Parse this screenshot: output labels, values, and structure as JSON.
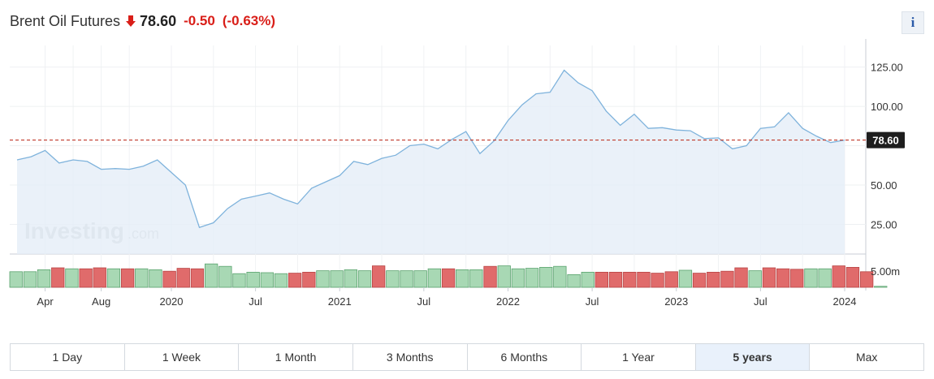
{
  "header": {
    "title": "Brent Oil Futures",
    "price": "78.60",
    "change": "-0.50",
    "change_pct": "(-0.63%)",
    "arrow_icon": "arrow-down-icon",
    "down_color": "#d91e18"
  },
  "info_button": {
    "label": "i",
    "icon": "info-icon"
  },
  "watermark": {
    "brand": "Investing",
    "suffix": ".com"
  },
  "ranges": {
    "items": [
      "1 Day",
      "1 Week",
      "1 Month",
      "3 Months",
      "6 Months",
      "1 Year",
      "5 years",
      "Max"
    ],
    "active": "5 years"
  },
  "chart_data": {
    "type": "area",
    "price_ticks": [
      25,
      50,
      100,
      125
    ],
    "price_tick_labels": [
      "25.00",
      "50.00",
      "100.00",
      "125.00"
    ],
    "current_price_label": "78.60",
    "current_price": 78.6,
    "volume_tick_label": "5.00m",
    "x_tick_labels": [
      "Apr",
      "Aug",
      "2020",
      "Jul",
      "2021",
      "Jul",
      "2022",
      "Jul",
      "2023",
      "Jul",
      "2024"
    ],
    "x_tick_dates": [
      "2019-04",
      "2019-08",
      "2020-01",
      "2020-07",
      "2021-01",
      "2021-07",
      "2022-01",
      "2022-07",
      "2023-01",
      "2023-07",
      "2024-01"
    ],
    "series": [
      {
        "dates": [
          "2019-02",
          "2019-03",
          "2019-04",
          "2019-05",
          "2019-06",
          "2019-07",
          "2019-08",
          "2019-09",
          "2019-10",
          "2019-11",
          "2019-12",
          "2020-01",
          "2020-02",
          "2020-03",
          "2020-04",
          "2020-05",
          "2020-06",
          "2020-07",
          "2020-08",
          "2020-09",
          "2020-10",
          "2020-11",
          "2020-12",
          "2021-01",
          "2021-02",
          "2021-03",
          "2021-04",
          "2021-05",
          "2021-06",
          "2021-07",
          "2021-08",
          "2021-09",
          "2021-10",
          "2021-11",
          "2021-12",
          "2022-01",
          "2022-02",
          "2022-03",
          "2022-04",
          "2022-05",
          "2022-06",
          "2022-07",
          "2022-08",
          "2022-09",
          "2022-10",
          "2022-11",
          "2022-12",
          "2023-01",
          "2023-02",
          "2023-03",
          "2023-04",
          "2023-05",
          "2023-06",
          "2023-07",
          "2023-08",
          "2023-09",
          "2023-10",
          "2023-11",
          "2023-12",
          "2024-01"
        ],
        "values": [
          66,
          68,
          72,
          64,
          66,
          65,
          60,
          60.5,
          60,
          62,
          66,
          58,
          50,
          23,
          26,
          35,
          41,
          43,
          45,
          41,
          38,
          48,
          52,
          56,
          65,
          63,
          67,
          69,
          75,
          76,
          73,
          79,
          84,
          70,
          78,
          91,
          101,
          108,
          109,
          123,
          115,
          110,
          97,
          88,
          95,
          86,
          86.5,
          85,
          84.5,
          79.5,
          80,
          73,
          75,
          86,
          87,
          96,
          86,
          81,
          77,
          78.6
        ]
      }
    ],
    "volume_values": [
      3.2,
      3.2,
      3.6,
      4.0,
      3.8,
      3.8,
      4.0,
      3.8,
      3.8,
      3.8,
      3.6,
      3.3,
      3.9,
      3.8,
      4.8,
      4.3,
      2.8,
      3.1,
      3.0,
      2.8,
      2.9,
      3.1,
      3.4,
      3.4,
      3.6,
      3.4,
      4.4,
      3.4,
      3.4,
      3.4,
      3.8,
      3.8,
      3.6,
      3.6,
      4.3,
      4.4,
      3.8,
      3.9,
      4.1,
      4.3,
      2.6,
      3.1,
      3.1,
      3.1,
      3.1,
      3.1,
      2.9,
      3.2,
      3.5,
      2.9,
      3.1,
      3.3,
      4.0,
      3.4,
      4.0,
      3.8,
      3.7,
      3.8,
      3.8,
      4.4,
      4.1,
      3.2,
      0.2
    ],
    "volume_up": [
      true,
      true,
      true,
      false,
      true,
      false,
      false,
      true,
      false,
      true,
      true,
      false,
      false,
      false,
      true,
      true,
      true,
      true,
      true,
      true,
      false,
      false,
      true,
      true,
      true,
      true,
      false,
      true,
      true,
      true,
      true,
      false,
      true,
      true,
      false,
      true,
      true,
      true,
      true,
      true,
      true,
      true,
      false,
      false,
      false,
      false,
      false,
      false,
      true,
      false,
      false,
      false,
      false,
      true,
      false,
      false,
      false,
      true,
      true,
      false,
      false,
      false,
      true
    ],
    "colors": {
      "line": "#7fb3dc",
      "area": "#e5eef7",
      "vol_up": "#a8d8b4",
      "vol_down": "#e06b6b",
      "price_line": "#c0392b"
    }
  }
}
